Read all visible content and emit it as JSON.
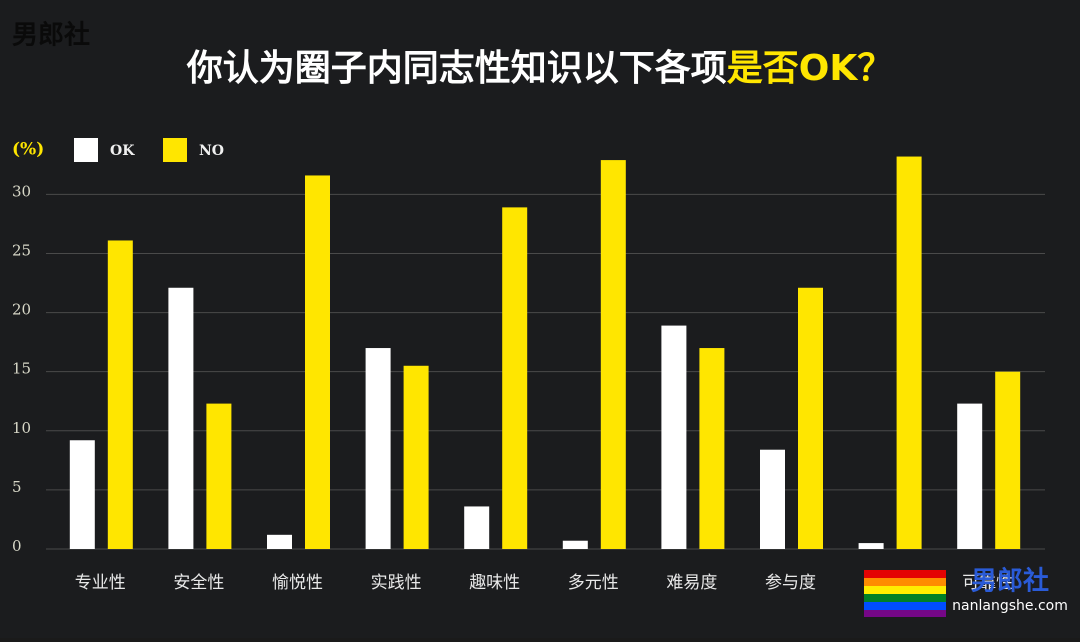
{
  "chart_data": {
    "type": "bar",
    "title": "你认为圈子内同志性知识以下各项",
    "title_emphasis": "是否OK？",
    "y_axis_label": "(%)",
    "categories": [
      "专业性",
      "安全性",
      "愉悦性",
      "实践性",
      "趣味性",
      "多元性",
      "难易度",
      "参与度",
      null,
      "可靠性"
    ],
    "series": [
      {
        "name": "OK",
        "color": "#ffffff",
        "values": [
          9.2,
          22.1,
          1.2,
          17.0,
          3.6,
          0.7,
          18.9,
          8.4,
          0.5,
          12.3
        ]
      },
      {
        "name": "NO",
        "color": "#ffe600",
        "values": [
          26.1,
          12.3,
          31.6,
          15.5,
          28.9,
          32.9,
          17.0,
          22.1,
          33.2,
          15.0
        ]
      }
    ],
    "ylim": [
      0,
      33.5
    ],
    "yticks": [
      0,
      5,
      10,
      15,
      20,
      25,
      30
    ],
    "grid": true
  },
  "logo": "男郎社",
  "watermark": {
    "name": "男郎社",
    "url": "nanlangshe.com"
  }
}
